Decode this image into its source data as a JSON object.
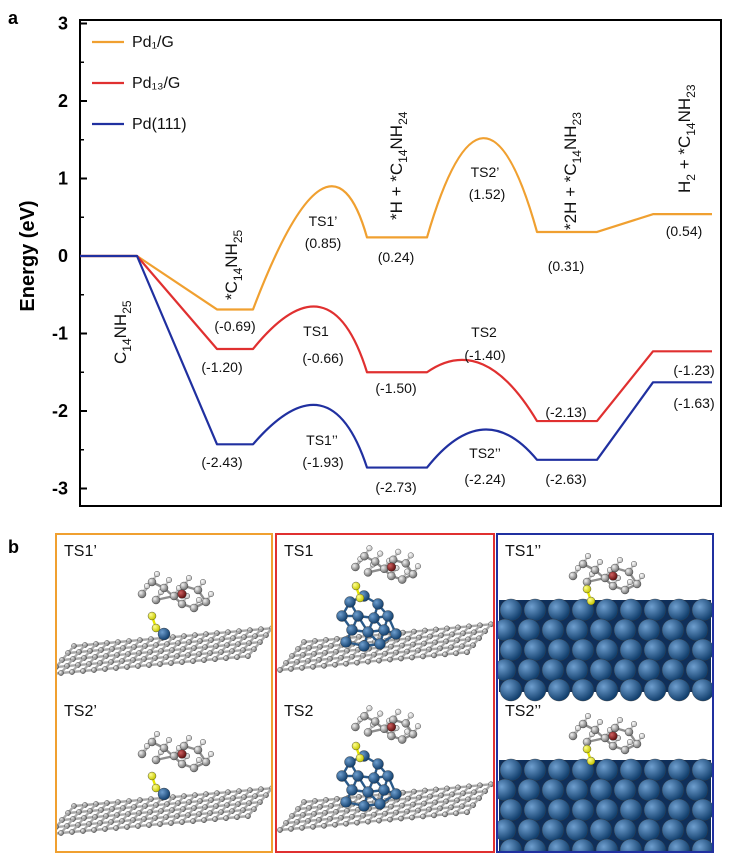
{
  "panel_a_label": "a",
  "panel_b_label": "b",
  "chart_data": {
    "type": "line",
    "ylabel": "Energy (eV)",
    "ylim": [
      -3.2,
      3.0
    ],
    "yticks": [
      "3",
      "2",
      "1",
      "0",
      "-1",
      "-2",
      "-3"
    ],
    "legend_placement": "top-left",
    "grid": false,
    "states": [
      "C14NH25",
      "*C14NH25",
      "TS1",
      "*H + *C14NH24",
      "TS2",
      "*2H + *C14NH23",
      "H2 + *C14NH23"
    ],
    "state_labels": [
      {
        "main": "C",
        "s1": "14",
        "mid": "NH",
        "s2": "25"
      },
      {
        "main": "*C",
        "s1": "14",
        "mid": "NH",
        "s2": "25"
      },
      {
        "main": "*H + *C",
        "s1": "14",
        "mid": "NH",
        "s2": "24"
      },
      {
        "main": "*2H + *C",
        "s1": "14",
        "mid": "NH",
        "s2": "23"
      },
      {
        "main": "H",
        "s0": "2",
        "pre": " + *C",
        "s1": "14",
        "mid": "NH",
        "s2": "23"
      }
    ],
    "series": [
      {
        "name": "Pd₁/G",
        "color": "#f0a030",
        "values": [
          0,
          -0.69,
          0.85,
          0.24,
          1.52,
          0.31,
          0.54
        ],
        "value_labels": [
          "",
          "(-0.69)",
          "(0.85)",
          "(0.24)",
          "(1.52)",
          "(0.31)",
          "(0.54)"
        ],
        "ts_labels": [
          "TS1’",
          "TS2’"
        ]
      },
      {
        "name": "Pd₁₃/G",
        "color": "#e03030",
        "values": [
          0,
          -1.2,
          -0.66,
          -1.5,
          -1.4,
          -2.13,
          -1.23
        ],
        "value_labels": [
          "",
          "(-1.20)",
          "(-0.66)",
          "(-1.50)",
          "(-1.40)",
          "(-2.13)",
          "(-1.23)"
        ],
        "ts_labels": [
          "TS1",
          "TS2"
        ]
      },
      {
        "name": "Pd(111)",
        "color": "#2030a0",
        "values": [
          0,
          -2.43,
          -1.93,
          -2.73,
          -2.24,
          -2.63,
          -1.63
        ],
        "value_labels": [
          "",
          "(-2.43)",
          "(-1.93)",
          "(-2.73)",
          "(-2.24)",
          "(-2.63)",
          "(-1.63)"
        ],
        "ts_labels": [
          "TS1’’",
          "TS2’’"
        ]
      }
    ]
  },
  "structures": {
    "boxes": [
      {
        "color": "#f0a030",
        "top_label": "TS1’",
        "bottom_label": "TS2’",
        "support": "graphene-single"
      },
      {
        "color": "#e03030",
        "top_label": "TS1",
        "bottom_label": "TS2",
        "support": "graphene-cluster"
      },
      {
        "color": "#2030a0",
        "top_label": "TS1’’",
        "bottom_label": "TS2’’",
        "support": "slab"
      }
    ]
  }
}
